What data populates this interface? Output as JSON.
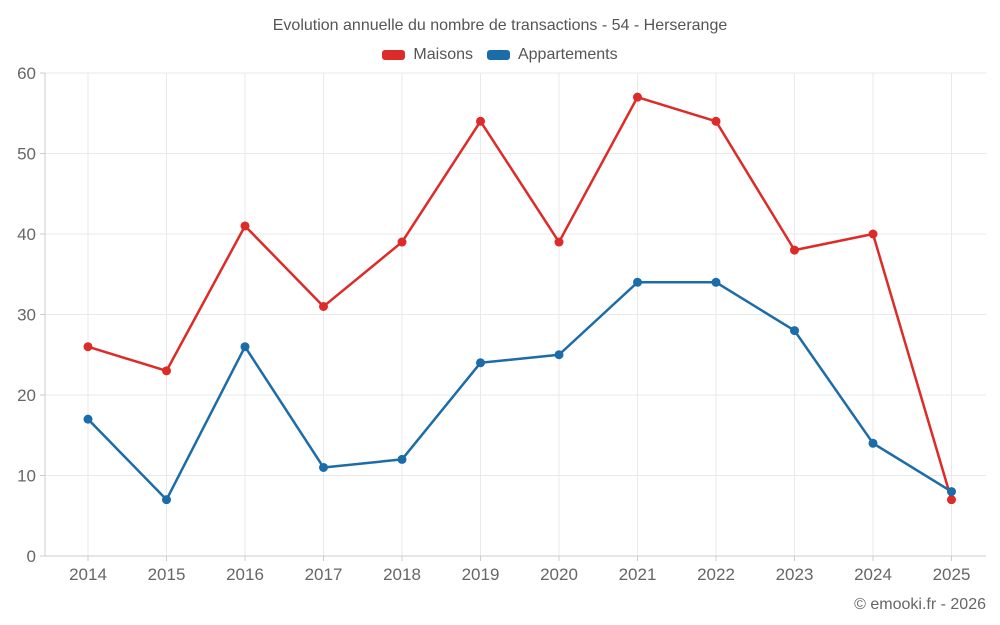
{
  "title": "Evolution annuelle du nombre de transactions - 54 - Herserange",
  "footer": "© emooki.fr - 2026",
  "chart_data": {
    "type": "line",
    "title": "Evolution annuelle du nombre de transactions - 54 - Herserange",
    "x": [
      "2014",
      "2015",
      "2016",
      "2017",
      "2018",
      "2019",
      "2020",
      "2021",
      "2022",
      "2023",
      "2024",
      "2025"
    ],
    "series": [
      {
        "name": "Maisons",
        "color": "#dc2b28",
        "values": [
          26,
          23,
          41,
          31,
          39,
          54,
          39,
          57,
          54,
          38,
          40,
          7
        ]
      },
      {
        "name": "Appartements",
        "color": "#1b6ca8",
        "values": [
          17,
          7,
          26,
          11,
          12,
          24,
          25,
          34,
          34,
          28,
          14,
          8
        ]
      }
    ],
    "xlabel": "",
    "ylabel": "",
    "ylim": [
      0,
      60
    ],
    "yticks": [
      0,
      10,
      20,
      30,
      40,
      50,
      60
    ],
    "grid": true,
    "legend_position": "top-center",
    "grid_color": "#e9e9e9",
    "axis_color": "#cccccc",
    "tick_label_color": "#666666",
    "marker": "circle"
  }
}
